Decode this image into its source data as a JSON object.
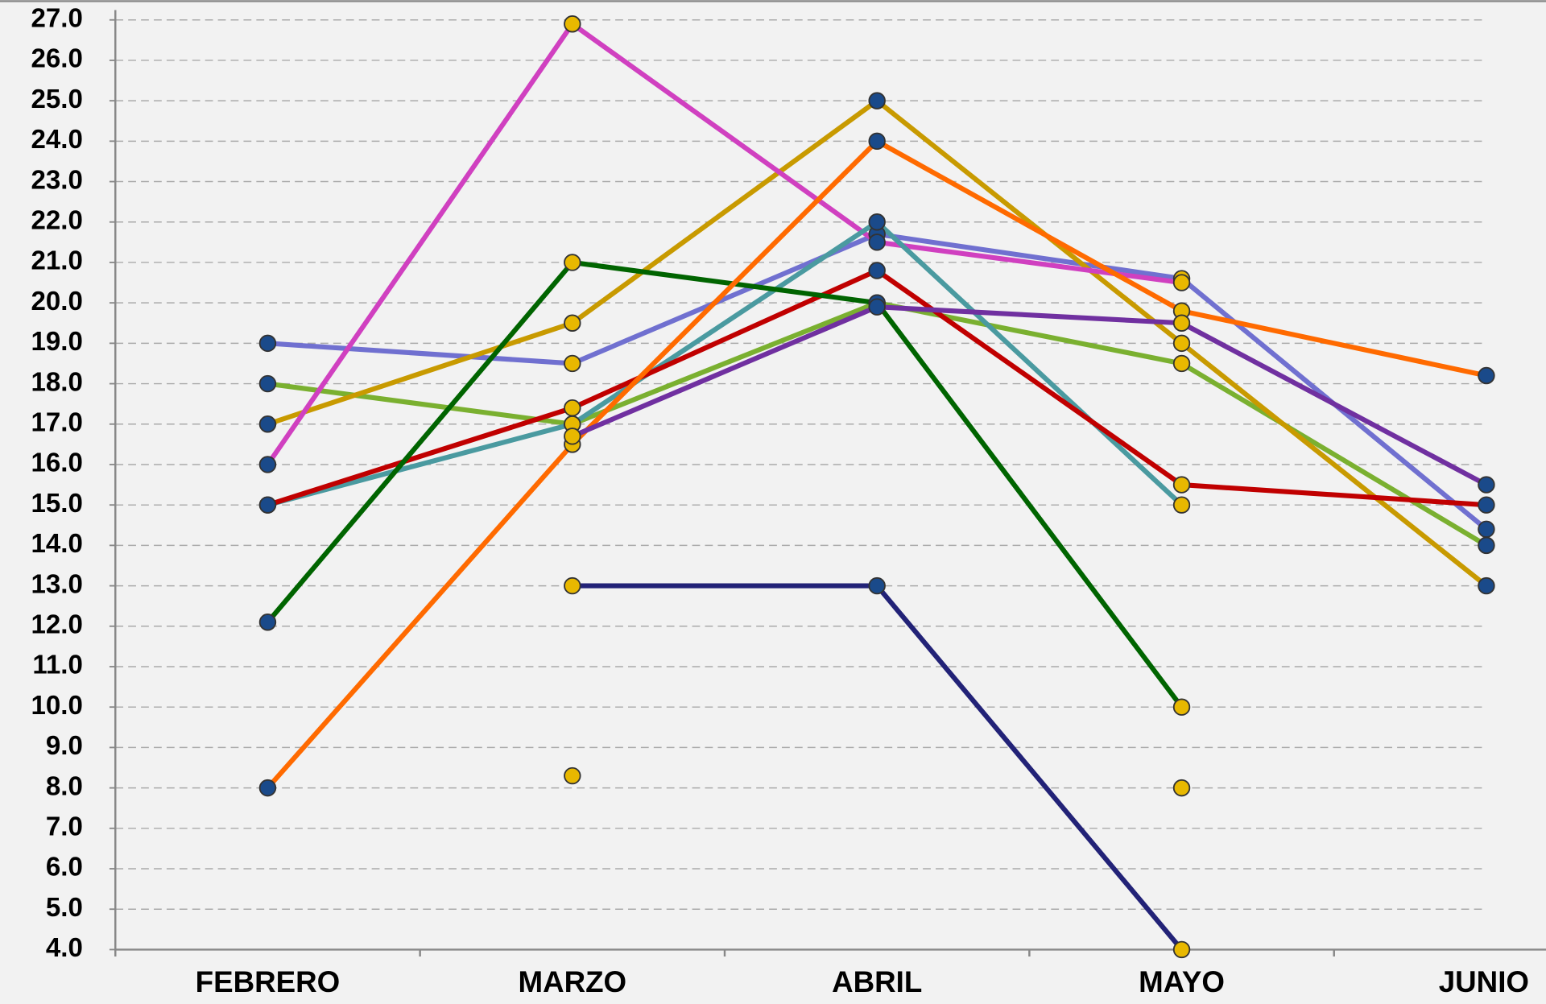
{
  "chart_data": {
    "type": "line",
    "categories": [
      "FEBRERO",
      "MARZO",
      "ABRIL",
      "MAYO",
      "JUNIO"
    ],
    "ylim": [
      4,
      27
    ],
    "yticks": [
      {
        "value": 4,
        "label": "4.0"
      },
      {
        "value": 5,
        "label": "5.0"
      },
      {
        "value": 6,
        "label": "6.0"
      },
      {
        "value": 7,
        "label": "7.0"
      },
      {
        "value": 8,
        "label": "8.0"
      },
      {
        "value": 9,
        "label": "9.0"
      },
      {
        "value": 10,
        "label": "10.0"
      },
      {
        "value": 11,
        "label": "11.0"
      },
      {
        "value": 12,
        "label": "12.0"
      },
      {
        "value": 13,
        "label": "13.0"
      },
      {
        "value": 14,
        "label": "14.0"
      },
      {
        "value": 15,
        "label": "15.0"
      },
      {
        "value": 16,
        "label": "16.0"
      },
      {
        "value": 17,
        "label": "17.0"
      },
      {
        "value": 18,
        "label": "18.0"
      },
      {
        "value": 19,
        "label": "19.0"
      },
      {
        "value": 20,
        "label": "20.0"
      },
      {
        "value": 21,
        "label": "21.0"
      },
      {
        "value": 22,
        "label": "22.0"
      },
      {
        "value": 23,
        "label": "23.0"
      },
      {
        "value": 24,
        "label": "24.0"
      },
      {
        "value": 25,
        "label": "25.0"
      },
      {
        "value": 26,
        "label": "26.0"
      },
      {
        "value": 27,
        "label": "27.0"
      }
    ],
    "grid": true,
    "series": [
      {
        "color": "#7070d0",
        "values": [
          19,
          18.5,
          21.7,
          20.6,
          14.4
        ]
      },
      {
        "color": "#7ab030",
        "values": [
          18,
          17,
          20,
          18.5,
          14
        ]
      },
      {
        "color": "#c89a00",
        "values": [
          17,
          19.5,
          25,
          19,
          13
        ]
      },
      {
        "color": "#d040c0",
        "values": [
          16,
          26.9,
          21.5,
          20.5,
          null
        ]
      },
      {
        "color": "#4a9aa0",
        "values": [
          15,
          17,
          22,
          15,
          null
        ]
      },
      {
        "color": "#c00000",
        "values": [
          15,
          17.4,
          20.8,
          15.5,
          15
        ]
      },
      {
        "color": "#006400",
        "values": [
          12.1,
          21,
          20,
          10,
          null
        ]
      },
      {
        "color": "#ff6a00",
        "values": [
          8,
          16.5,
          24,
          19.8,
          18.2
        ]
      },
      {
        "color": "#7030a0",
        "values": [
          null,
          16.7,
          19.9,
          19.5,
          15.5
        ]
      },
      {
        "color": "#222277",
        "values": [
          null,
          13,
          13,
          4,
          null
        ]
      },
      {
        "color": "#20a0d0",
        "values": [
          null,
          8.3,
          null,
          8,
          null
        ]
      }
    ]
  }
}
